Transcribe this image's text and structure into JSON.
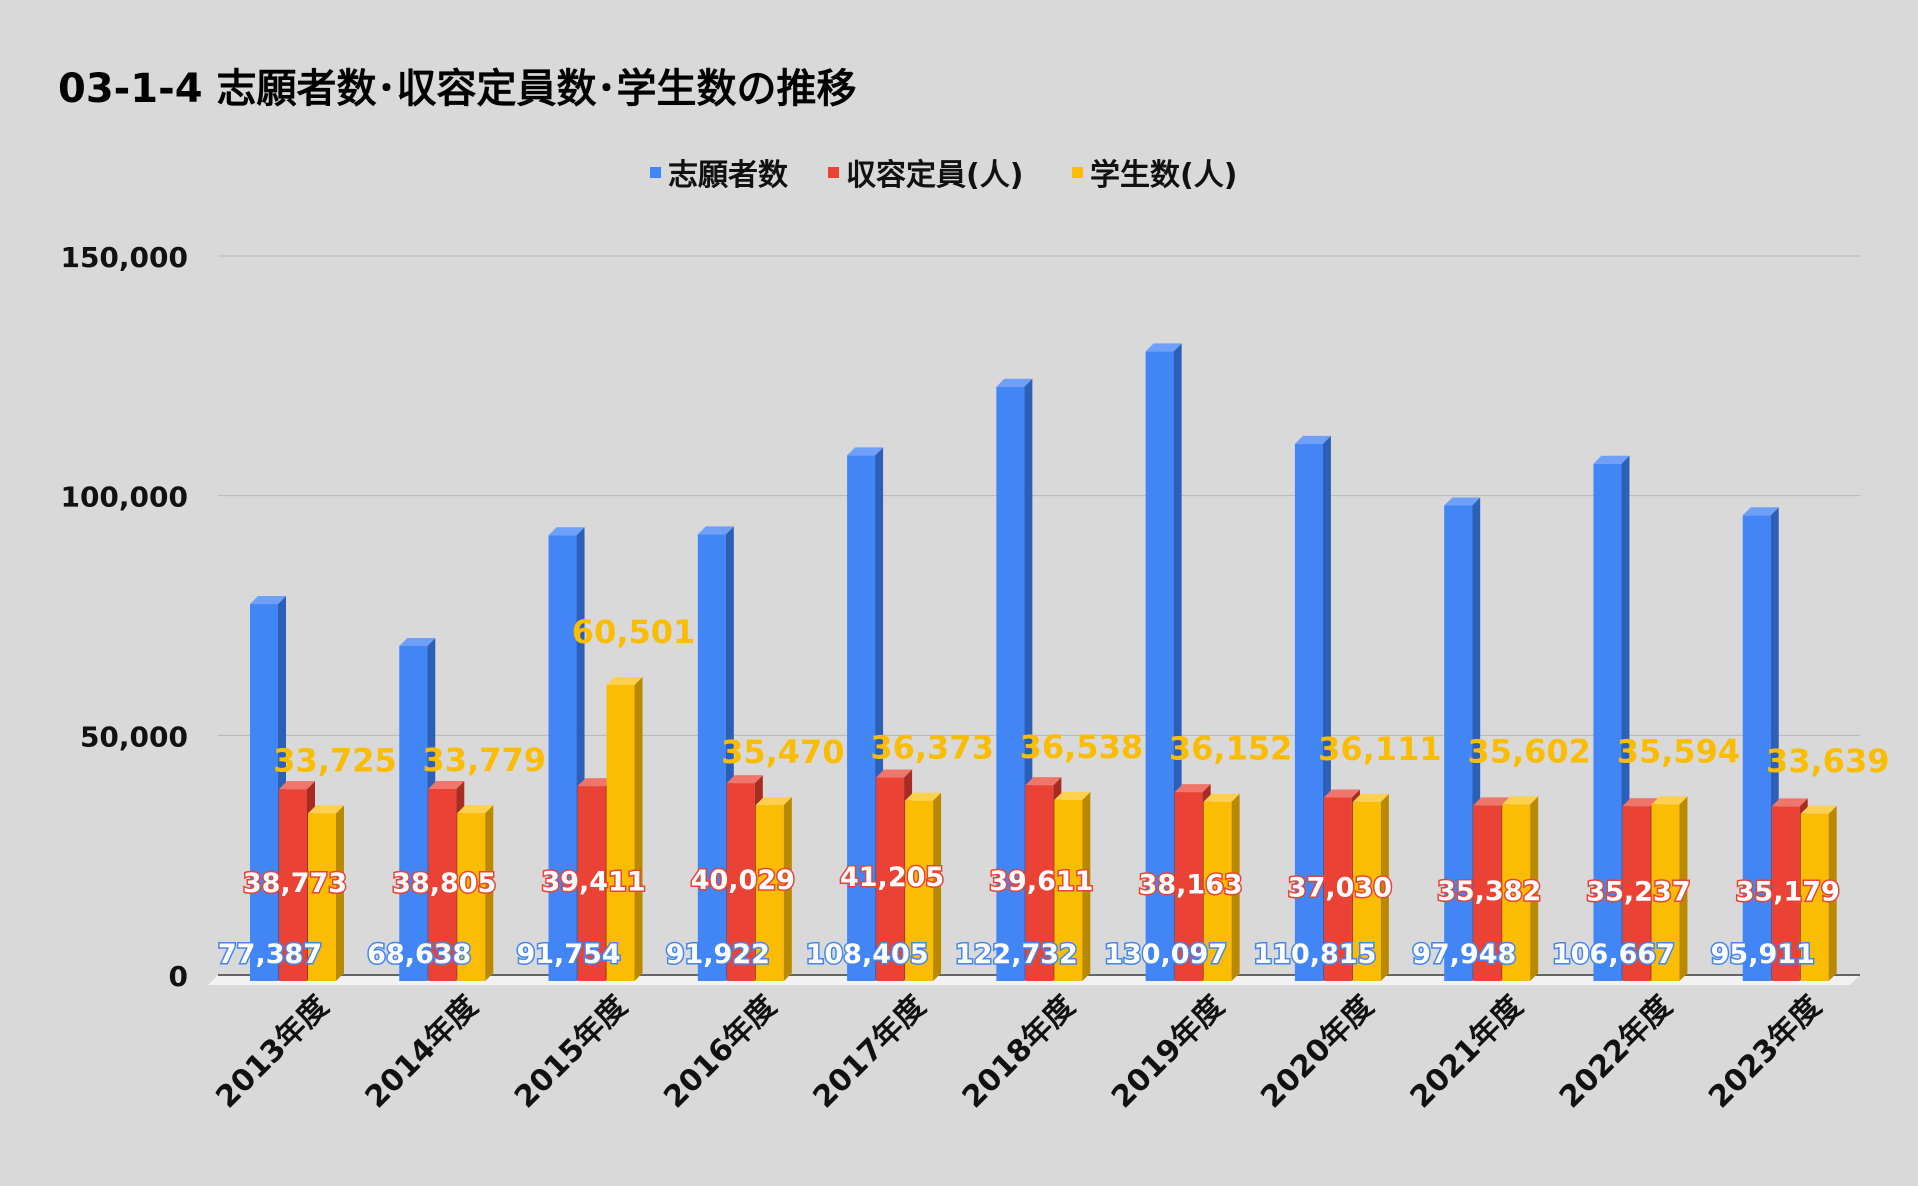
{
  "chart_data": {
    "type": "bar",
    "title": "03-1-4 志願者数･収容定員数･学生数の推移",
    "xlabel": "",
    "ylabel": "",
    "ylim": [
      0,
      150000
    ],
    "y_ticks": [
      0,
      50000,
      100000,
      150000
    ],
    "y_tick_labels": [
      "0",
      "50,000",
      "100,000",
      "150,000"
    ],
    "grid": true,
    "legend_position": "top-center",
    "categories": [
      "2013年度",
      "2014年度",
      "2015年度",
      "2016年度",
      "2017年度",
      "2018年度",
      "2019年度",
      "2020年度",
      "2021年度",
      "2022年度",
      "2023年度"
    ],
    "series": [
      {
        "name": "志願者数",
        "color": "#4285f4",
        "side_color": "#2b5fb8",
        "top_color": "#6fa0f7",
        "label_color": "#ffffff",
        "label_stroke": "#4285f4",
        "values": [
          77387,
          68638,
          91754,
          91922,
          108405,
          122732,
          130097,
          110815,
          97948,
          106667,
          95911
        ],
        "labels": [
          "77,387",
          "68,638",
          "91,754",
          "91,922",
          "108,405",
          "122,732",
          "130,097",
          "110,815",
          "97,948",
          "106,667",
          "95,911"
        ]
      },
      {
        "name": "収容定員(人)",
        "color": "#ea4335",
        "side_color": "#a82c22",
        "top_color": "#f0756a",
        "label_color": "#ffffff",
        "label_stroke": "#ea4335",
        "values": [
          38773,
          38805,
          39411,
          40029,
          41205,
          39611,
          38163,
          37030,
          35382,
          35237,
          35179
        ],
        "labels": [
          "38,773",
          "38,805",
          "39,411",
          "40,029",
          "41,205",
          "39,611",
          "38,163",
          "37,030",
          "35,382",
          "35,237",
          "35,179"
        ]
      },
      {
        "name": "学生数(人)",
        "color": "#fbbc04",
        "side_color": "#b98a00",
        "top_color": "#fdd04f",
        "label_color": "#fbbc04",
        "label_stroke": "none",
        "values": [
          33725,
          33779,
          60501,
          35470,
          36373,
          36538,
          36152,
          36111,
          35602,
          35594,
          33639
        ],
        "labels": [
          "33,725",
          "33,779",
          "60,501",
          "35,470",
          "36,373",
          "36,538",
          "36,152",
          "36,111",
          "35,602",
          "35,594",
          "33,639"
        ]
      }
    ]
  }
}
